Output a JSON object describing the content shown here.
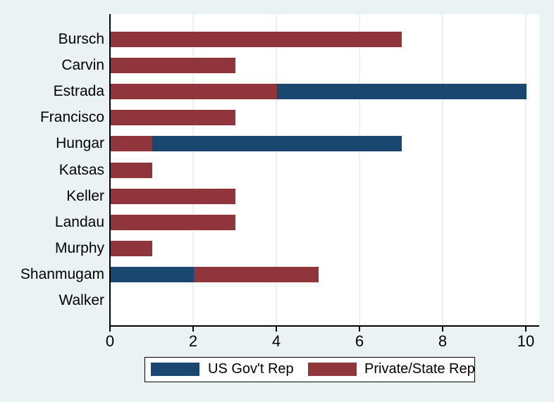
{
  "chart_data": {
    "type": "bar",
    "orientation": "horizontal",
    "stacked": true,
    "title": "",
    "xlabel": "",
    "ylabel": "",
    "categories": [
      "Bursch",
      "Carvin",
      "Estrada",
      "Francisco",
      "Hungar",
      "Katsas",
      "Keller",
      "Landau",
      "Murphy",
      "Shanmugam",
      "Walker"
    ],
    "series": [
      {
        "name": "US Gov't Rep",
        "color": "#1A476F",
        "values": [
          0,
          0,
          6,
          0,
          6,
          0,
          0,
          0,
          0,
          2,
          0
        ]
      },
      {
        "name": "Private/State Rep",
        "color": "#90353B",
        "values": [
          7,
          3,
          4,
          3,
          1,
          1,
          3,
          3,
          1,
          3,
          0
        ]
      }
    ],
    "totals": [
      7,
      3,
      10,
      3,
      7,
      1,
      3,
      3,
      1,
      5,
      0
    ],
    "stack_segments": [
      [
        [
          "Private/State Rep",
          7
        ]
      ],
      [
        [
          "Private/State Rep",
          3
        ]
      ],
      [
        [
          "Private/State Rep",
          4
        ],
        [
          "US Gov't Rep",
          6
        ]
      ],
      [
        [
          "Private/State Rep",
          3
        ]
      ],
      [
        [
          "Private/State Rep",
          1
        ],
        [
          "US Gov't Rep",
          6
        ]
      ],
      [
        [
          "Private/State Rep",
          1
        ]
      ],
      [
        [
          "Private/State Rep",
          3
        ]
      ],
      [
        [
          "Private/State Rep",
          3
        ]
      ],
      [
        [
          "Private/State Rep",
          1
        ]
      ],
      [
        [
          "US Gov't Rep",
          2
        ],
        [
          "Private/State Rep",
          3
        ]
      ],
      []
    ],
    "xticks": [
      "0",
      "2",
      "4",
      "6",
      "8",
      "10"
    ],
    "xtick_values": [
      0,
      2,
      4,
      6,
      8,
      10
    ],
    "xlim": [
      0,
      10.32
    ],
    "grid": true,
    "grid_color": "#EAF2F3",
    "plot_background": "#FFFFFF",
    "outer_background": "#EAF2F3",
    "axis_color": "#000000",
    "legend": {
      "position": "bottom",
      "background": "#FFFFFF",
      "border_color": "#000000",
      "items": [
        {
          "label": "US Gov't Rep",
          "color": "#1A476F"
        },
        {
          "label": "Private/State Rep",
          "color": "#90353B"
        }
      ]
    }
  }
}
